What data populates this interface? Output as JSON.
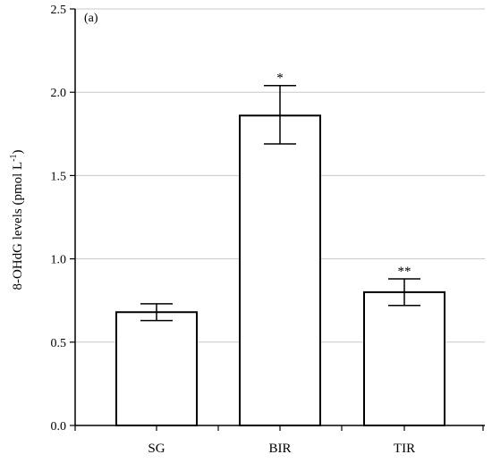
{
  "chart_data": {
    "type": "bar",
    "panel_label": "(a)",
    "ylabel": "8-OHdG levels (pmol L",
    "ylabel_sup": "-1",
    "ylabel_tail": ")",
    "xlabel": "",
    "ylim": [
      0,
      2.5
    ],
    "yticks": [
      "0.0",
      "0.5",
      "1.0",
      "1.5",
      "2.0",
      "2.5"
    ],
    "grid": true,
    "categories": [
      "SG",
      "BIR",
      "TIR"
    ],
    "values": [
      0.68,
      1.86,
      0.8
    ],
    "error_low": [
      0.63,
      1.69,
      0.72
    ],
    "error_high": [
      0.73,
      2.04,
      0.88
    ],
    "annotations": [
      "",
      "*",
      "**"
    ],
    "colors": {
      "bar_fill": "#ffffff",
      "bar_stroke": "#000000",
      "grid": "#c8c8c8",
      "axis": "#000000"
    }
  }
}
